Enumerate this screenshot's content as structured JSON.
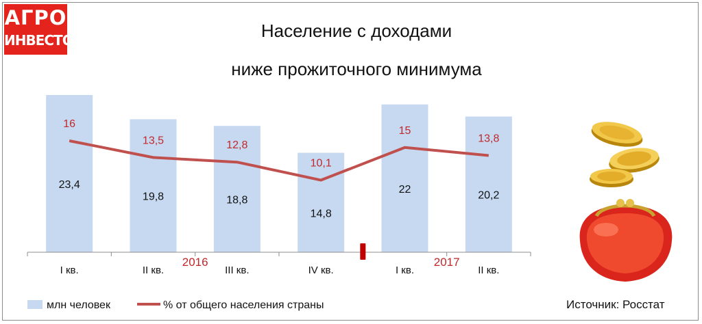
{
  "logo": {
    "line1": "АГРО",
    "line2": "ИНВЕСТОР"
  },
  "colors": {
    "bar": "#c6d9f1",
    "line": "#c0504d",
    "line_label": "#c0282b",
    "logo": "#e3231c"
  },
  "chart_data": {
    "type": "bar",
    "title_lines": [
      "Население с доходами",
      "ниже прожиточного минимума"
    ],
    "categories": [
      "I кв.",
      "II кв.",
      "III кв.",
      "IV кв.",
      "I кв.",
      "II кв."
    ],
    "year_labels": [
      "2016",
      "2017"
    ],
    "series": [
      {
        "name": "млн человек",
        "type": "bar",
        "values": [
          23.4,
          19.8,
          18.8,
          14.8,
          22,
          20.2
        ],
        "labels": [
          "23,4",
          "19,8",
          "18,8",
          "14,8",
          "22",
          "20,2"
        ]
      },
      {
        "name": "% от общего населения страны",
        "type": "line",
        "values": [
          16,
          13.5,
          12.8,
          10.1,
          15,
          13.8
        ],
        "labels": [
          "16",
          "13,5",
          "12,8",
          "10,1",
          "15",
          "13,8"
        ]
      }
    ],
    "legend_position": "bottom",
    "grid": false
  },
  "source": "Источник: Росстат"
}
